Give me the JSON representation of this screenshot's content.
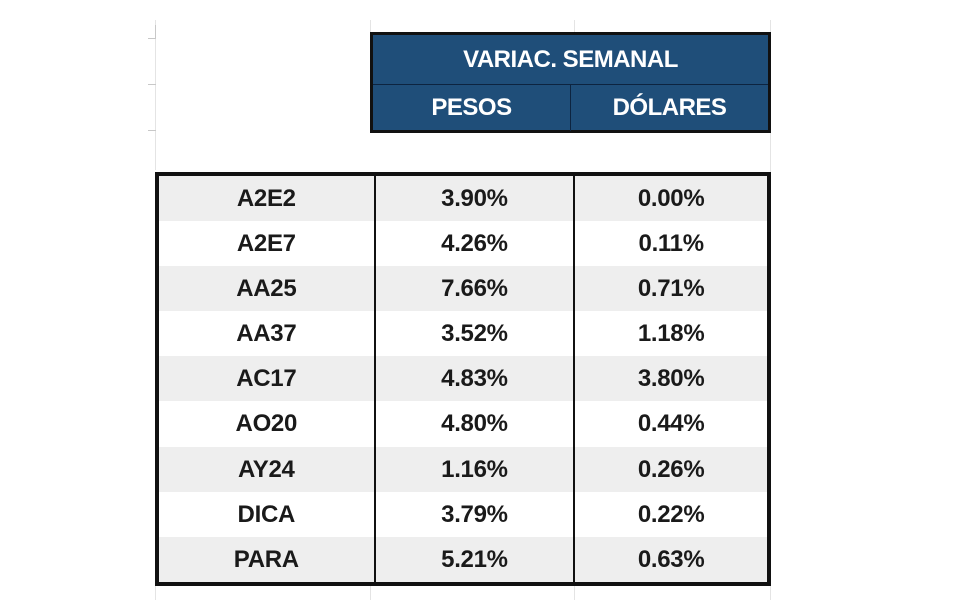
{
  "header": {
    "title": "VARIAC. SEMANAL",
    "col_pesos": "PESOS",
    "col_dolares": "DÓLARES"
  },
  "rows": [
    {
      "ticker": "A2E2",
      "pesos": "3.90%",
      "dolares": "0.00%"
    },
    {
      "ticker": "A2E7",
      "pesos": "4.26%",
      "dolares": "0.11%"
    },
    {
      "ticker": "AA25",
      "pesos": "7.66%",
      "dolares": "0.71%"
    },
    {
      "ticker": "AA37",
      "pesos": "3.52%",
      "dolares": "1.18%"
    },
    {
      "ticker": "AC17",
      "pesos": "4.83%",
      "dolares": "3.80%"
    },
    {
      "ticker": "AO20",
      "pesos": "4.80%",
      "dolares": "0.44%"
    },
    {
      "ticker": "AY24",
      "pesos": "1.16%",
      "dolares": "0.26%"
    },
    {
      "ticker": "DICA",
      "pesos": "3.79%",
      "dolares": "0.22%"
    },
    {
      "ticker": "PARA",
      "pesos": "5.21%",
      "dolares": "0.63%"
    }
  ],
  "colors": {
    "header_bg": "#1f4e79",
    "header_text": "#ffffff",
    "row_shade": "#eeeeee",
    "border": "#111111"
  }
}
